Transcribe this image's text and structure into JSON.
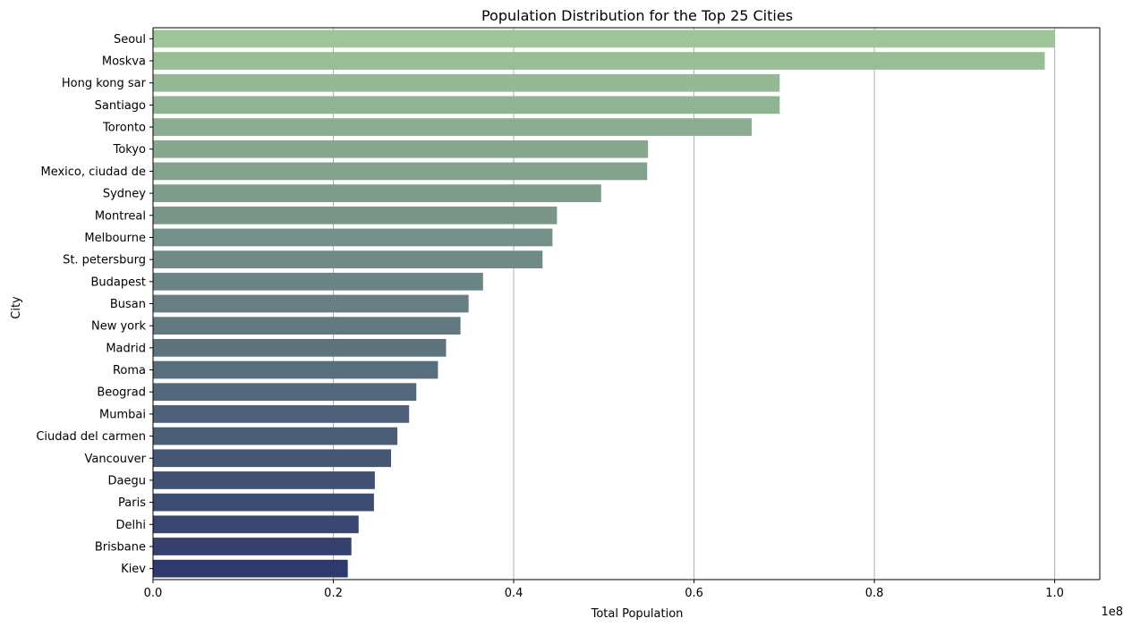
{
  "chart_data": {
    "type": "bar",
    "orientation": "horizontal",
    "title": "Population Distribution for the Top 25 Cities",
    "xlabel": "Total Population",
    "ylabel": "City",
    "x_offset_label": "1e8",
    "xlim": [
      0,
      1.05
    ],
    "x_ticks": [
      "0.0",
      "0.2",
      "0.4",
      "0.6",
      "0.8",
      "1.0"
    ],
    "grid": "vertical",
    "categories": [
      "Seoul",
      "Moskva",
      "Hong kong sar",
      "Santiago",
      "Toronto",
      "Tokyo",
      "Mexico, ciudad de",
      "Sydney",
      "Montreal",
      "Melbourne",
      "St. petersburg",
      "Budapest",
      "Busan",
      "New york",
      "Madrid",
      "Roma",
      "Beograd",
      "Mumbai",
      "Ciudad del carmen",
      "Vancouver",
      "Daegu",
      "Paris",
      "Delhi",
      "Brisbane",
      "Kiev"
    ],
    "values": [
      1.0,
      0.989,
      0.695,
      0.695,
      0.664,
      0.549,
      0.548,
      0.497,
      0.448,
      0.443,
      0.432,
      0.366,
      0.35,
      0.341,
      0.325,
      0.316,
      0.292,
      0.284,
      0.271,
      0.264,
      0.246,
      0.245,
      0.228,
      0.22,
      0.216
    ],
    "palette": "crest",
    "color_start": "#9ec498",
    "color_end": "#2f3a6c"
  }
}
